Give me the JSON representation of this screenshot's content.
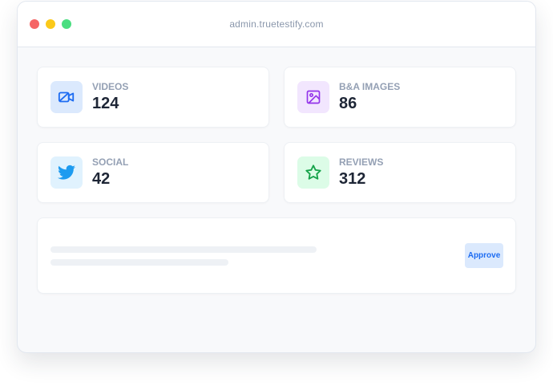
{
  "window": {
    "url": "admin.truetestify.com",
    "dots": [
      "#f56565",
      "#fbc91a",
      "#4ade80"
    ]
  },
  "stats": [
    {
      "label": "VIDEOS",
      "value": "124",
      "icon": "video-icon",
      "bg": "#dbe9fd",
      "color": "#1d6cf2"
    },
    {
      "label": "B&A IMAGES",
      "value": "86",
      "icon": "image-icon",
      "bg": "#f2e6fe",
      "color": "#9333ea"
    },
    {
      "label": "SOCIAL",
      "value": "42",
      "icon": "twitter-icon",
      "bg": "#e0f2fe",
      "color": "#1d9bf0"
    },
    {
      "label": "REVIEWS",
      "value": "312",
      "icon": "star-icon",
      "bg": "#dcfce7",
      "color": "#16a34a"
    }
  ],
  "pending": {
    "approve_label": "Approve"
  }
}
